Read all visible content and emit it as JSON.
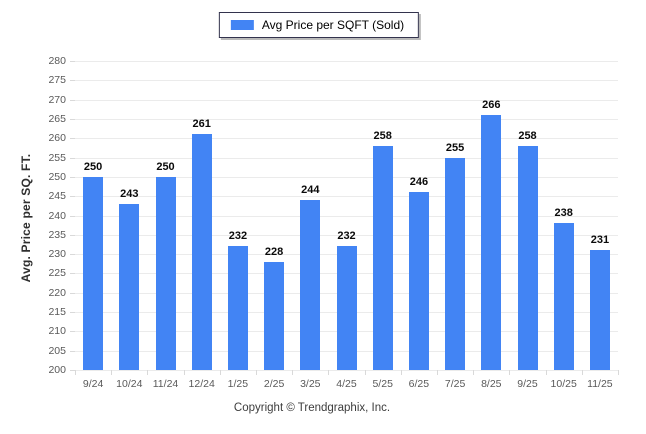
{
  "chart_data": {
    "type": "bar",
    "title": "",
    "xlabel": "",
    "ylabel": "Avg. Price per SQ. FT.",
    "categories": [
      "9/24",
      "10/24",
      "11/24",
      "12/24",
      "1/25",
      "2/25",
      "3/25",
      "4/25",
      "5/25",
      "6/25",
      "7/25",
      "8/25",
      "9/25",
      "10/25",
      "11/25"
    ],
    "series": [
      {
        "name": "Avg Price per SQFT (Sold)",
        "values": [
          250,
          243,
          250,
          261,
          232,
          228,
          244,
          232,
          258,
          246,
          255,
          266,
          258,
          238,
          231
        ]
      }
    ],
    "ylim": [
      200,
      280
    ],
    "ytick_step": 5,
    "grid": true,
    "legend_position": "top-center",
    "bar_color": "#4284f4",
    "data_labels": true
  },
  "footer": {
    "copyright": "Copyright © Trendgraphix, Inc."
  },
  "colors": {
    "bar": "#4284f4",
    "gridline": "#ebebeb",
    "axis_text": "#595959",
    "value_label": "#0a0a0a",
    "legend_border": "#33334d"
  }
}
